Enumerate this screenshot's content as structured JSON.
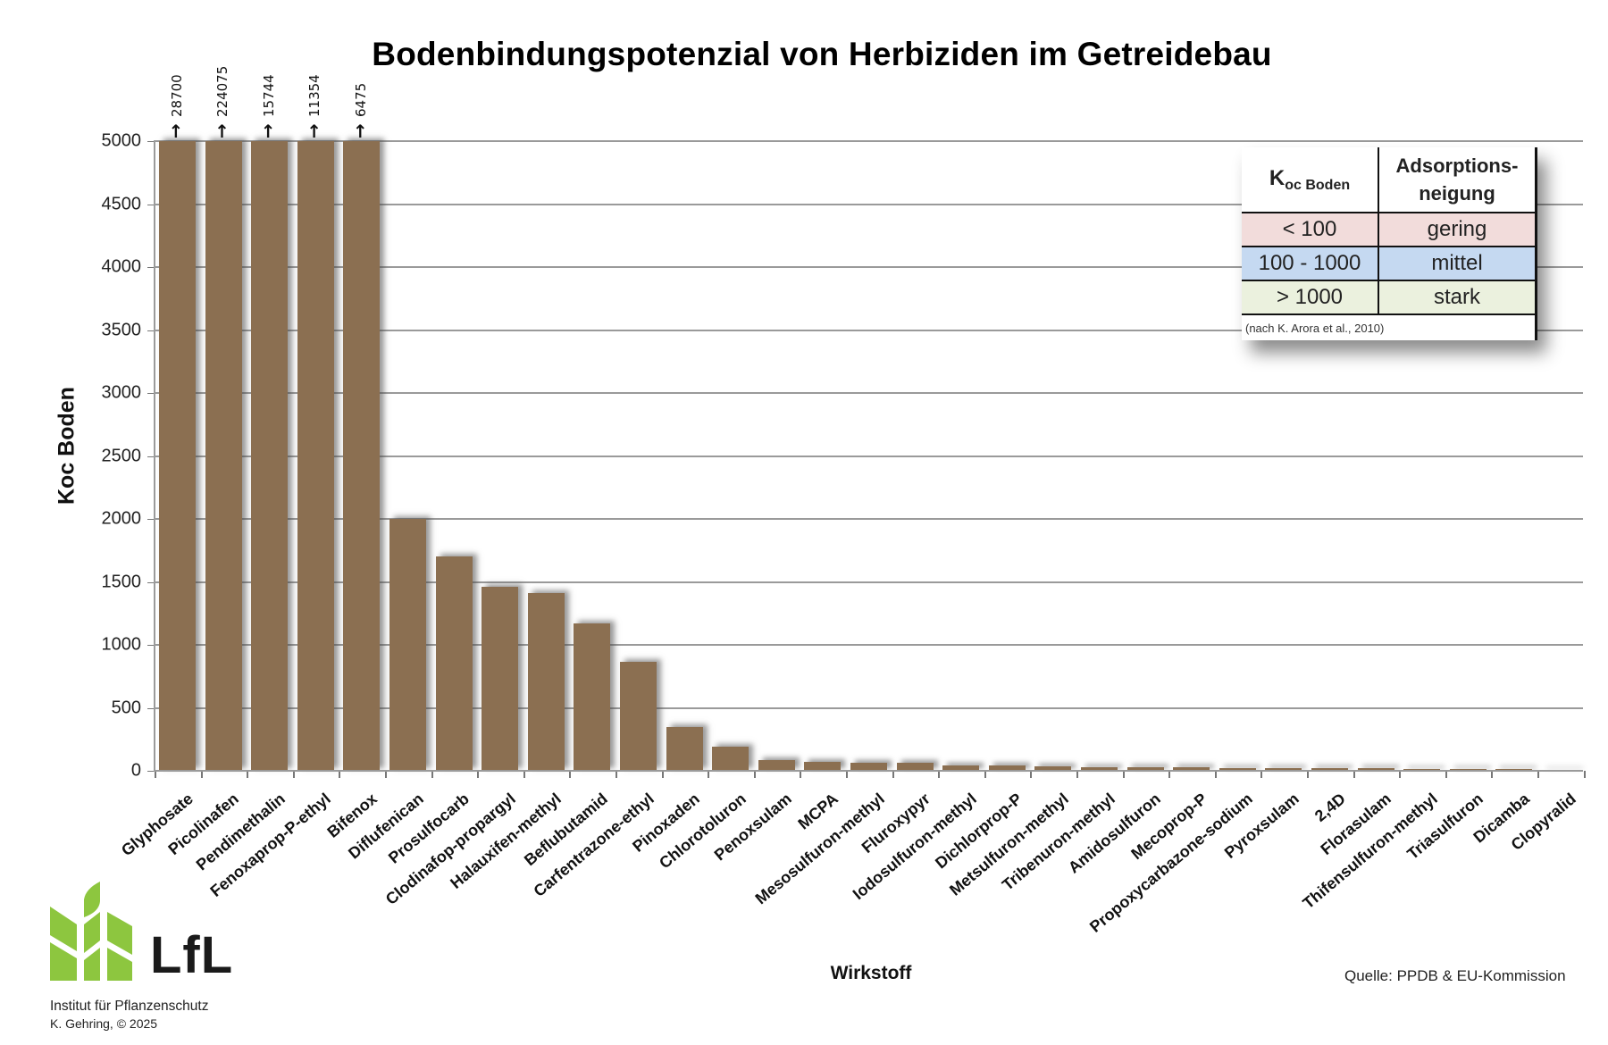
{
  "title": "Bodenbindungspotenzial von Herbiziden im Getreidebau",
  "axes": {
    "y_title": "Koc Boden",
    "x_title": "Wirkstoff",
    "y_ticks": [
      "0",
      "500",
      "1000",
      "1500",
      "2000",
      "2500",
      "3000",
      "3500",
      "4000",
      "4500",
      "5000"
    ]
  },
  "source": "Quelle: PPDB & EU-Kommission",
  "legend_table": {
    "header_col1_main": "K",
    "header_col1_sub": "oc Boden",
    "header_col2_line1": "Adsorptions-",
    "header_col2_line2": "neigung",
    "rows": [
      {
        "range": "< 100",
        "level": "gering",
        "color": "#f2dcdb"
      },
      {
        "range": "100 - 1000",
        "level": "mittel",
        "color": "#c5d9f1"
      },
      {
        "range": "> 1000",
        "level": "stark",
        "color": "#ebf1de"
      }
    ],
    "note": "(nach K. Arora et al., 2010)"
  },
  "logo": {
    "text": "LfL",
    "institute": "Institut für Pflanzenschutz",
    "author": "K. Gehring, © 2025",
    "color": "#8dc63f"
  },
  "colors": {
    "bar": "#8b6f51",
    "grid": "#9a9a9a"
  },
  "overflow_labels": [
    {
      "index": 0,
      "value": "28700",
      "arrow": "↑"
    },
    {
      "index": 1,
      "value": "224075",
      "arrow": "↑"
    },
    {
      "index": 2,
      "value": "15744",
      "arrow": "↑"
    },
    {
      "index": 3,
      "value": "11354",
      "arrow": "↑"
    },
    {
      "index": 4,
      "value": "6475",
      "arrow": "↑"
    }
  ],
  "chart_data": {
    "type": "bar",
    "title": "Bodenbindungspotenzial von Herbiziden im Getreidebau",
    "xlabel": "Wirkstoff",
    "ylabel": "Koc Boden",
    "ylim": [
      0,
      5000
    ],
    "y_tick_step": 500,
    "grid": true,
    "legend_position": "table top-right",
    "categories": [
      "Glyphosate",
      "Picolinafen",
      "Pendimethalin",
      "Fenoxaprop-P-ethyl",
      "Bifenox",
      "Diflufenican",
      "Prosulfocarb",
      "Clodinafop-propargyl",
      "Halauxifen-methyl",
      "Beflubutamid",
      "Carfentrazone-ethyl",
      "Pinoxaden",
      "Chlorotoluron",
      "Penoxsulam",
      "MCPA",
      "Mesosulfuron-methyl",
      "Fluroxypyr",
      "Iodosulfuron-methyl",
      "Dichlorprop-P",
      "Metsulfuron-methyl",
      "Tribenuron-methyl",
      "Amidosulfuron",
      "Mecoprop-P",
      "Propoxycarbazone-sodium",
      "Pyroxsulam",
      "2,4D",
      "Florasulam",
      "Thifensulfuron-methyl",
      "Triasulfuron",
      "Dicamba",
      "Clopyralid"
    ],
    "values": [
      28700,
      224075,
      15744,
      11354,
      6475,
      2000,
      1700,
      1460,
      1410,
      1170,
      865,
      345,
      190,
      87,
      71,
      66,
      66,
      42,
      42,
      38,
      28,
      28,
      26,
      24,
      24,
      22,
      18,
      16,
      14,
      12,
      5
    ],
    "annotations": [
      "Values above 5000 shown with arrows: 28700, 224075, 15744, 11354, 6475"
    ]
  }
}
